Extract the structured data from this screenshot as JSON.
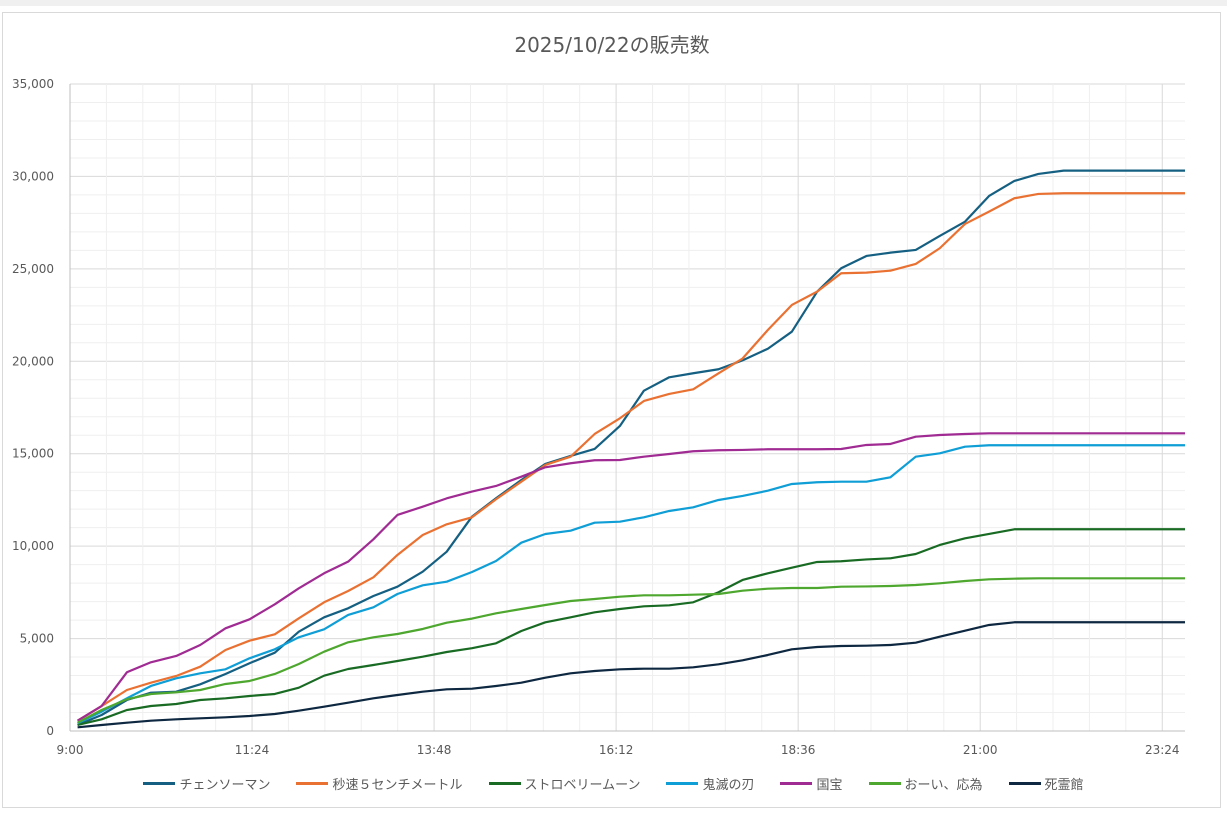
{
  "chart_data": {
    "type": "line",
    "title": "2025/10/22の販売数",
    "xlabel": "",
    "ylabel": "",
    "x_ticks": [
      "9:00",
      "11:24",
      "13:48",
      "16:12",
      "18:36",
      "21:00",
      "23:24"
    ],
    "y_ticks": [
      "0",
      "5,000",
      "10,000",
      "15,000",
      "20,000",
      "25,000",
      "30,000",
      "35,000"
    ],
    "ylim": [
      0,
      35000
    ],
    "xlim": [
      "9:00",
      "23:42"
    ],
    "grid": "major and minor",
    "legend_position": "bottom",
    "x": [
      "9:06",
      "9:25",
      "9:45",
      "10:04",
      "10:24",
      "10:43",
      "11:03",
      "11:22",
      "11:42",
      "12:01",
      "12:21",
      "12:40",
      "13:00",
      "13:19",
      "13:39",
      "13:58",
      "14:18",
      "14:37",
      "14:57",
      "15:16",
      "15:36",
      "15:55",
      "16:15",
      "16:34",
      "16:54",
      "17:13",
      "17:33",
      "17:52",
      "18:12",
      "18:31",
      "18:51",
      "19:10",
      "19:30",
      "19:49",
      "20:09",
      "20:28",
      "20:48",
      "21:07",
      "21:27",
      "21:46",
      "22:06",
      "22:25",
      "22:45",
      "23:04",
      "23:24",
      "23:43"
    ],
    "series": [
      {
        "name": "チェンソーマン",
        "color": "#156082",
        "values": [
          325,
          866,
          1677,
          2072,
          2126,
          2526,
          3084,
          3663,
          4236,
          5372,
          6151,
          6638,
          7304,
          7807,
          8618,
          9700,
          11600,
          12589,
          13579,
          14445,
          14878,
          15256,
          16500,
          18410,
          19135,
          19352,
          19568,
          20050,
          20680,
          21602,
          23767,
          25031,
          25698,
          25877,
          26022,
          26780,
          27553,
          28944,
          29755,
          30134,
          30313,
          30313,
          30313,
          30313,
          30313,
          30313
        ]
      },
      {
        "name": "秒速５センチメートル",
        "color": "#E97132",
        "values": [
          557,
          1352,
          2218,
          2613,
          2976,
          3479,
          4382,
          4885,
          5231,
          6097,
          6963,
          7574,
          8315,
          9522,
          10604,
          11182,
          11560,
          12535,
          13487,
          14391,
          14840,
          16067,
          16917,
          17853,
          18232,
          18486,
          19352,
          20150,
          21694,
          23047,
          23767,
          24762,
          24795,
          24903,
          25265,
          26114,
          27429,
          28094,
          28819,
          29052,
          29090,
          29090,
          29090,
          29090,
          29090,
          29090
        ]
      },
      {
        "name": "ストロベリームーン",
        "color": "#196B24",
        "values": [
          325,
          633,
          1136,
          1352,
          1461,
          1677,
          1767,
          1894,
          2002,
          2343,
          2992,
          3354,
          3571,
          3787,
          4020,
          4274,
          4480,
          4745,
          5410,
          5881,
          6151,
          6422,
          6600,
          6746,
          6800,
          6963,
          7504,
          8169,
          8532,
          8835,
          9143,
          9181,
          9280,
          9343,
          9576,
          10063,
          10425,
          10658,
          10912,
          10912,
          10912,
          10912,
          10912,
          10912,
          10912,
          10912
        ]
      },
      {
        "name": "鬼滅の刃",
        "color": "#0F9ED5",
        "values": [
          417,
          1044,
          1769,
          2435,
          2851,
          3122,
          3338,
          3933,
          4420,
          5069,
          5502,
          6276,
          6692,
          7412,
          7882,
          8077,
          8600,
          9197,
          10187,
          10658,
          10836,
          11269,
          11323,
          11561,
          11902,
          12102,
          12497,
          12714,
          13000,
          13363,
          13455,
          13488,
          13488,
          13725,
          14840,
          15022,
          15381,
          15456,
          15456,
          15456,
          15456,
          15456,
          15456,
          15456,
          15456,
          15456
        ]
      },
      {
        "name": "国宝",
        "color": "#A02B93",
        "values": [
          557,
          1352,
          3176,
          3717,
          4058,
          4653,
          5555,
          6042,
          6854,
          7720,
          8531,
          9160,
          10370,
          11686,
          12135,
          12585,
          12950,
          13255,
          13758,
          14266,
          14483,
          14645,
          14661,
          14840,
          14986,
          15132,
          15186,
          15203,
          15240,
          15240,
          15240,
          15256,
          15473,
          15527,
          15922,
          16014,
          16068,
          16105,
          16105,
          16105,
          16105,
          16105,
          16105,
          16105,
          16105,
          16105
        ]
      },
      {
        "name": "おーい、応為",
        "color": "#4EA72E",
        "values": [
          449,
          1136,
          1715,
          2002,
          2094,
          2218,
          2543,
          2705,
          3084,
          3625,
          4290,
          4799,
          5069,
          5248,
          5518,
          5859,
          6080,
          6367,
          6600,
          6817,
          7033,
          7141,
          7267,
          7340,
          7340,
          7374,
          7412,
          7590,
          7698,
          7736,
          7736,
          7807,
          7820,
          7845,
          7899,
          7990,
          8115,
          8207,
          8240,
          8261,
          8261,
          8261,
          8261,
          8261,
          8261,
          8261
        ]
      },
      {
        "name": "死霊館",
        "color": "#0E2841",
        "values": [
          200,
          325,
          449,
          557,
          633,
          687,
          741,
          812,
          920,
          1098,
          1315,
          1531,
          1769,
          1948,
          2126,
          2256,
          2290,
          2435,
          2613,
          2884,
          3122,
          3246,
          3338,
          3371,
          3371,
          3446,
          3608,
          3825,
          4112,
          4420,
          4544,
          4598,
          4615,
          4653,
          4777,
          5102,
          5426,
          5735,
          5881,
          5881,
          5881,
          5881,
          5881,
          5881,
          5881,
          5881
        ]
      }
    ]
  }
}
